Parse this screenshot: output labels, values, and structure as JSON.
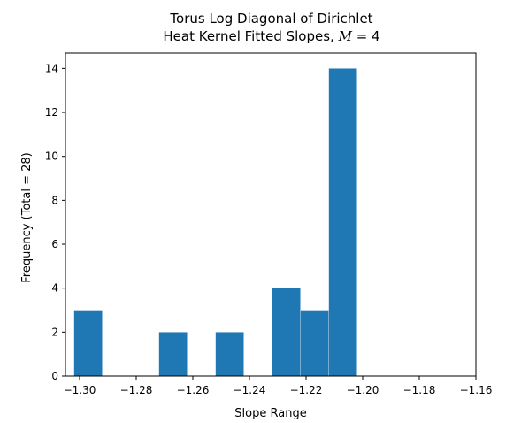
{
  "chart_data": {
    "type": "bar",
    "title_lines": [
      "Torus Log Diagonal of Dirichlet",
      "Heat Kernel Fitted Slopes, "
    ],
    "title_math": [
      "M",
      " = 4"
    ],
    "xlabel": "Slope Range",
    "ylabel": "Frequency (Total = 28)",
    "xlim": [
      -1.305,
      -1.16
    ],
    "ylim": [
      0,
      14.7
    ],
    "x_ticks": [
      -1.3,
      -1.28,
      -1.26,
      -1.24,
      -1.22,
      -1.2,
      -1.18,
      -1.16
    ],
    "x_tick_labels": [
      "−1.30",
      "−1.28",
      "−1.26",
      "−1.24",
      "−1.22",
      "−1.20",
      "−1.18",
      "−1.16"
    ],
    "y_ticks": [
      0,
      2,
      4,
      6,
      8,
      10,
      12,
      14
    ],
    "y_tick_labels": [
      "0",
      "2",
      "4",
      "6",
      "8",
      "10",
      "12",
      "14"
    ],
    "bin_edges": [
      -1.3015,
      -1.2915,
      -1.2815,
      -1.2715,
      -1.2615,
      -1.2515,
      -1.2415,
      -1.2315,
      -1.2215,
      -1.2115,
      -1.2015,
      -1.1915,
      -1.1815,
      -1.1715
    ],
    "bins": [
      {
        "start": -1.302,
        "end": -1.292,
        "count": 3
      },
      {
        "start": -1.292,
        "end": -1.282,
        "count": 0
      },
      {
        "start": -1.282,
        "end": -1.272,
        "count": 0
      },
      {
        "start": -1.272,
        "end": -1.262,
        "count": 2
      },
      {
        "start": -1.262,
        "end": -1.252,
        "count": 0
      },
      {
        "start": -1.252,
        "end": -1.242,
        "count": 2
      },
      {
        "start": -1.242,
        "end": -1.232,
        "count": 0
      },
      {
        "start": -1.232,
        "end": -1.222,
        "count": 4
      },
      {
        "start": -1.222,
        "end": -1.212,
        "count": 3
      },
      {
        "start": -1.212,
        "end": -1.202,
        "count": 14
      }
    ],
    "bar_color": "#1f77b4",
    "grid": false
  }
}
